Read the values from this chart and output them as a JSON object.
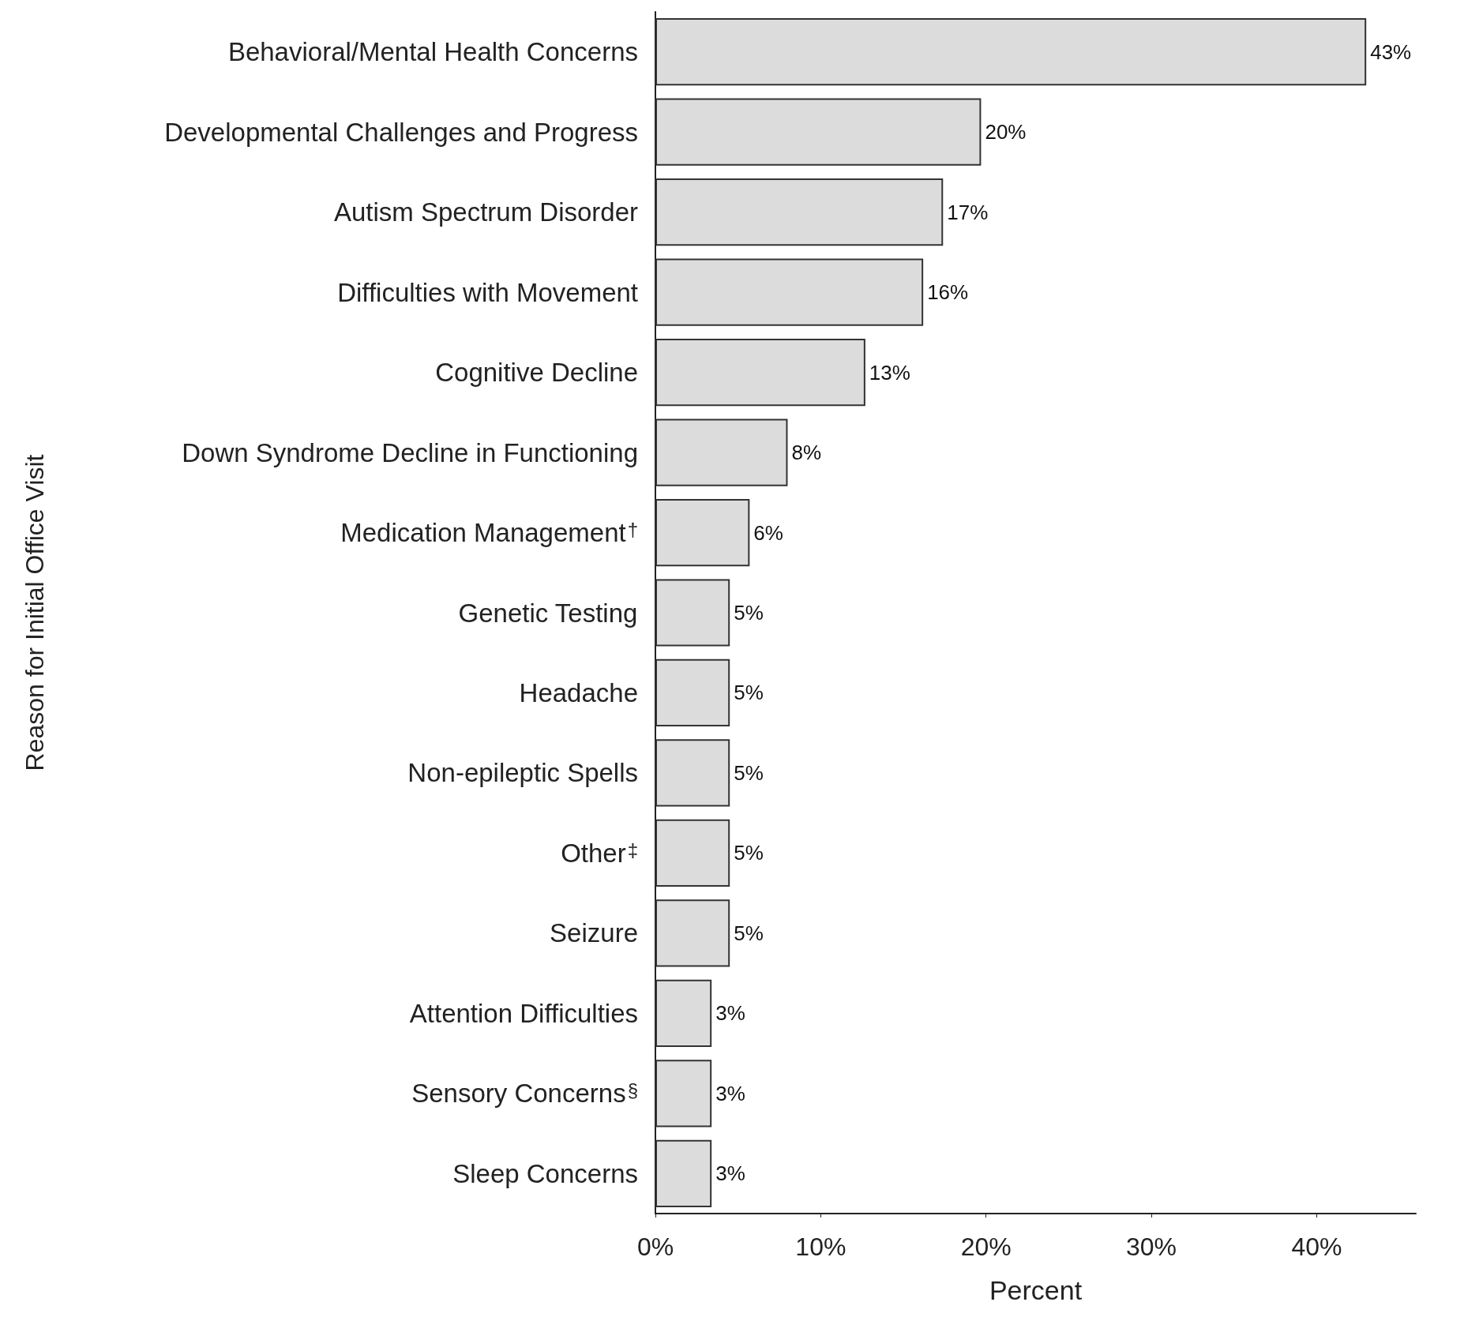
{
  "chart_data": {
    "type": "bar",
    "orientation": "horizontal",
    "xlabel": "Percent",
    "ylabel": "Reason for Initial Office Visit",
    "categories": [
      "Behavioral/Mental Health Concerns",
      "Developmental Challenges and Progress",
      "Autism Spectrum Disorder",
      "Difficulties with Movement",
      "Cognitive Decline",
      "Down Syndrome Decline in Functioning",
      "Medication Management$^{†}$",
      "Genetic Testing",
      "Headache",
      "Non-epileptic Spells",
      "Other$^{‡}$",
      "Seizure",
      "Attention Difficulties",
      "Sensory Concerns$^{§}$",
      "Sleep Concerns"
    ],
    "values": [
      43,
      19.7,
      17.4,
      16.2,
      12.7,
      8,
      5.7,
      4.5,
      4.5,
      4.5,
      4.5,
      4.5,
      3.4,
      3.4,
      3.4
    ],
    "value_labels": [
      "43%",
      "20%",
      "17%",
      "16%",
      "13%",
      "8%",
      "6%",
      "5%",
      "5%",
      "5%",
      "5%",
      "5%",
      "3%",
      "3%",
      "3%"
    ],
    "color": "#dcdcdc",
    "xlim": [
      0,
      46
    ],
    "xticks": [
      {
        "value": 0,
        "label": "0%"
      },
      {
        "value": 10,
        "label": "10%"
      },
      {
        "value": 20,
        "label": "20%"
      },
      {
        "value": 30,
        "label": "30%"
      },
      {
        "value": 40,
        "label": "40%"
      }
    ],
    "grid": false
  }
}
